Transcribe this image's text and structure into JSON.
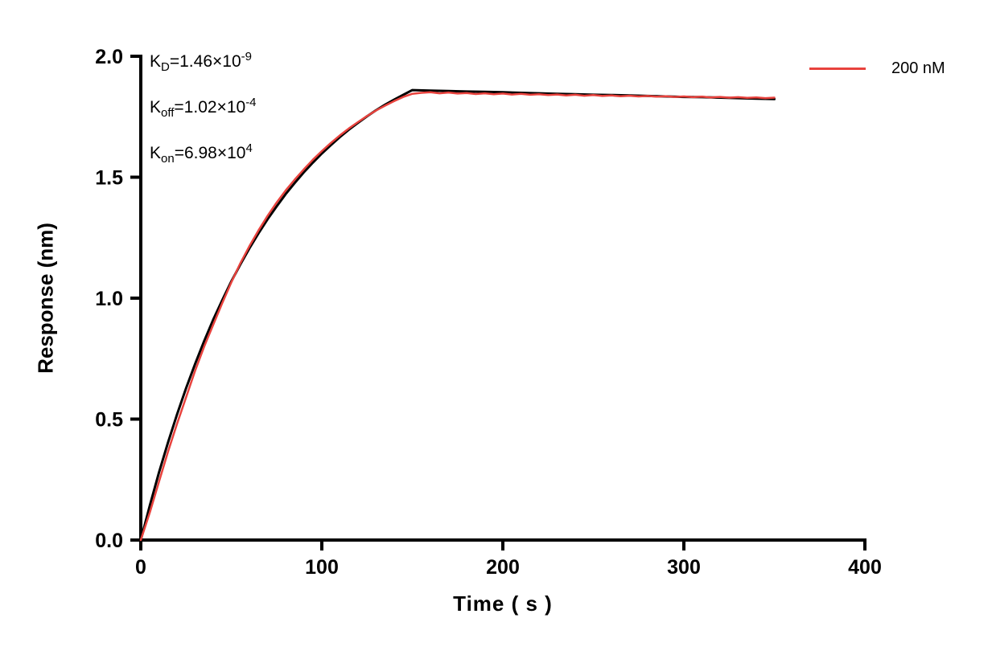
{
  "chart_data": {
    "type": "line",
    "title": "",
    "xlabel": "Time ( s )",
    "ylabel": "Response (nm)",
    "xlim": [
      0,
      400
    ],
    "ylim": [
      0,
      2.0
    ],
    "x_ticks": [
      0,
      100,
      200,
      300,
      400
    ],
    "x_tick_labels": [
      "0",
      "100",
      "200",
      "300",
      "400"
    ],
    "y_ticks": [
      0.0,
      0.5,
      1.0,
      1.5,
      2.0
    ],
    "y_tick_labels": [
      "0.0",
      "0.5",
      "1.0",
      "1.5",
      "2.0"
    ],
    "grid": false,
    "legend": {
      "label": "200 nM",
      "color": "#e8423d",
      "position": "top-right"
    },
    "annotations": [
      {
        "base": "K",
        "sub": "D",
        "value": "=1.46×10",
        "exp": "-9"
      },
      {
        "base": "K",
        "sub": "off",
        "value": "=1.02×10",
        "exp": "-4"
      },
      {
        "base": "K",
        "sub": "on",
        "value": "=6.98×10",
        "exp": "4"
      }
    ],
    "series": [
      {
        "name": "fit",
        "color": "#000000",
        "width": 3,
        "x": [
          0,
          5,
          10,
          15,
          20,
          25,
          30,
          35,
          40,
          45,
          50,
          55,
          60,
          65,
          70,
          75,
          80,
          85,
          90,
          95,
          100,
          105,
          110,
          115,
          120,
          125,
          130,
          135,
          140,
          145,
          150,
          160,
          170,
          180,
          190,
          200,
          210,
          220,
          230,
          240,
          250,
          260,
          270,
          280,
          290,
          300,
          310,
          320,
          330,
          340,
          350
        ],
        "y": [
          0,
          0.144,
          0.278,
          0.403,
          0.519,
          0.628,
          0.728,
          0.823,
          0.911,
          0.992,
          1.069,
          1.14,
          1.206,
          1.268,
          1.326,
          1.379,
          1.43,
          1.476,
          1.52,
          1.56,
          1.598,
          1.633,
          1.666,
          1.697,
          1.725,
          1.752,
          1.777,
          1.8,
          1.821,
          1.841,
          1.86,
          1.858,
          1.856,
          1.854,
          1.853,
          1.851,
          1.849,
          1.847,
          1.845,
          1.843,
          1.841,
          1.84,
          1.838,
          1.836,
          1.834,
          1.832,
          1.831,
          1.829,
          1.827,
          1.825,
          1.823
        ]
      },
      {
        "name": "200 nM",
        "color": "#e8423d",
        "width": 2.5,
        "x": [
          0,
          5,
          10,
          15,
          20,
          25,
          30,
          35,
          40,
          45,
          50,
          55,
          60,
          65,
          70,
          75,
          80,
          85,
          90,
          95,
          100,
          105,
          110,
          115,
          120,
          125,
          130,
          135,
          140,
          145,
          150,
          155,
          160,
          165,
          170,
          175,
          180,
          185,
          190,
          195,
          200,
          205,
          210,
          215,
          220,
          225,
          230,
          235,
          240,
          245,
          250,
          255,
          260,
          265,
          270,
          275,
          280,
          285,
          290,
          295,
          300,
          305,
          310,
          315,
          320,
          325,
          330,
          335,
          340,
          345,
          350
        ],
        "y": [
          0,
          0.115,
          0.24,
          0.365,
          0.48,
          0.59,
          0.7,
          0.8,
          0.89,
          0.98,
          1.065,
          1.145,
          1.215,
          1.28,
          1.34,
          1.395,
          1.445,
          1.49,
          1.532,
          1.572,
          1.608,
          1.642,
          1.673,
          1.702,
          1.728,
          1.753,
          1.776,
          1.796,
          1.815,
          1.832,
          1.845,
          1.849,
          1.851,
          1.847,
          1.85,
          1.846,
          1.848,
          1.844,
          1.847,
          1.843,
          1.846,
          1.842,
          1.845,
          1.841,
          1.843,
          1.84,
          1.842,
          1.838,
          1.841,
          1.837,
          1.84,
          1.836,
          1.838,
          1.835,
          1.837,
          1.834,
          1.836,
          1.833,
          1.835,
          1.832,
          1.834,
          1.831,
          1.833,
          1.83,
          1.832,
          1.829,
          1.831,
          1.828,
          1.83,
          1.827,
          1.829
        ]
      }
    ]
  }
}
